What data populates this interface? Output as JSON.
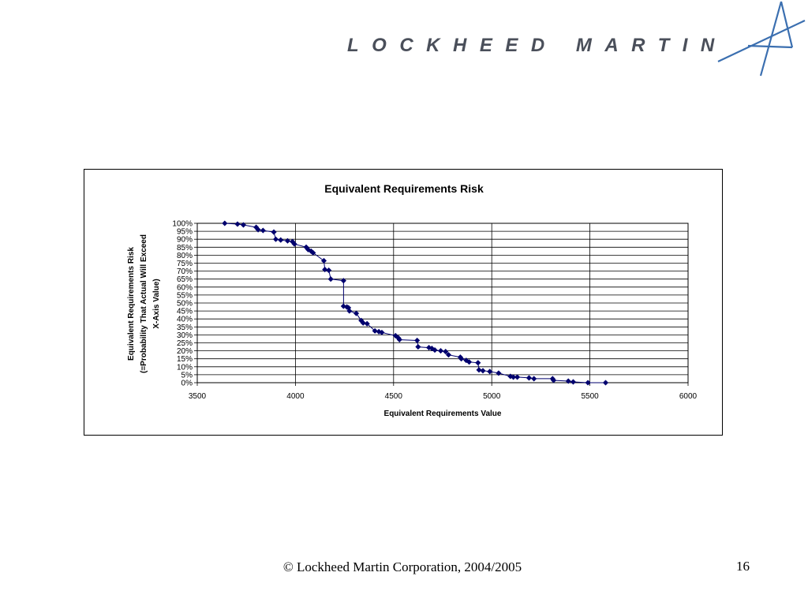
{
  "logo": {
    "text": "LOCKHEED MARTIN",
    "icon": "lockheed-martin-star-icon",
    "color": "#4a4f5a",
    "star_color": "#3b6fb0"
  },
  "footer": {
    "copyright": "© Lockheed Martin Corporation, 2004/2005",
    "page_number": "16"
  },
  "chart_data": {
    "type": "scatter",
    "title": "Equivalent Requirements Risk",
    "xlabel": "Equivalent Requirements Value",
    "ylabel_lines": [
      "Equivalent Requirements Risk",
      "(=Probability That Actual Will Exceed",
      "X-Axis Value)"
    ],
    "xlim": [
      3500,
      6000
    ],
    "ylim": [
      0,
      100
    ],
    "x_ticks": [
      "3500",
      "4000",
      "4500",
      "5000",
      "5500",
      "6000"
    ],
    "y_ticks": [
      "0%",
      "5%",
      "10%",
      "15%",
      "20%",
      "25%",
      "30%",
      "35%",
      "40%",
      "45%",
      "50%",
      "55%",
      "60%",
      "65%",
      "70%",
      "75%",
      "80%",
      "85%",
      "90%",
      "95%",
      "100%"
    ],
    "grid": {
      "vertical": true,
      "horizontal": true
    },
    "marker": "diamond",
    "line_color": "#00006e",
    "series": [
      {
        "x": [
          3640,
          3705,
          3735,
          3800,
          3810,
          3835,
          3890,
          3900,
          3925,
          3960,
          3985,
          3995,
          4055,
          4065,
          4080,
          4090,
          4145,
          4150,
          4170,
          4180,
          4245,
          4245,
          4262,
          4270,
          4275,
          4310,
          4335,
          4345,
          4365,
          4405,
          4425,
          4440,
          4510,
          4525,
          4530,
          4620,
          4625,
          4680,
          4695,
          4710,
          4740,
          4765,
          4780,
          4840,
          4845,
          4870,
          4885,
          4930,
          4935,
          4955,
          4990,
          5035,
          5095,
          5110,
          5130,
          5190,
          5215,
          5310,
          5315,
          5390,
          5415,
          5490,
          5580
        ],
        "y": [
          100,
          99.5,
          99,
          97.5,
          96,
          95.5,
          94.5,
          90,
          89.5,
          89,
          88.5,
          87,
          85,
          83.5,
          82.5,
          81.5,
          76.5,
          71,
          70.5,
          65,
          64,
          48,
          47.5,
          47,
          45,
          43.5,
          39,
          37.5,
          37,
          32.5,
          32,
          31.5,
          29.5,
          28,
          27,
          26.5,
          22.5,
          22,
          21.5,
          20.5,
          20,
          19.5,
          17.5,
          16,
          15,
          14,
          13,
          12.5,
          8,
          7.5,
          7,
          6,
          4,
          3.5,
          3.5,
          3,
          2.5,
          2.5,
          1.5,
          1,
          0.5,
          0,
          0
        ]
      }
    ]
  }
}
